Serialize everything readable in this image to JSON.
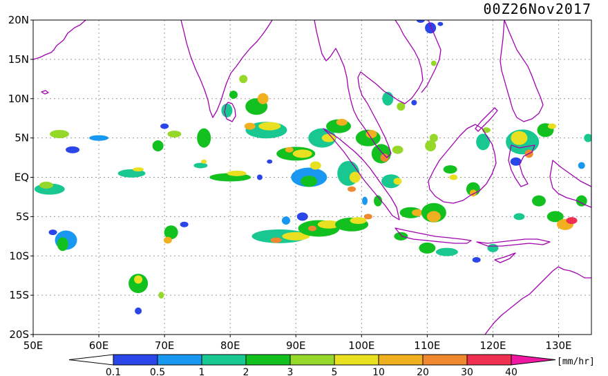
{
  "title": "00Z26Nov2017",
  "map": {
    "lon_range": [
      50,
      135
    ],
    "lat_range": [
      -20,
      20
    ],
    "lat_ticks": [
      "20N",
      "15N",
      "10N",
      "5N",
      "EQ",
      "5S",
      "10S",
      "15S",
      "20S"
    ],
    "lon_ticks": [
      "50E",
      "60E",
      "70E",
      "80E",
      "90E",
      "100E",
      "110E",
      "120E",
      "130E"
    ],
    "grid": "dotted",
    "coastline_color": "#a000b0"
  },
  "colorbar": {
    "unit": "[mm/hr]",
    "tick_labels": [
      "0.1",
      "0.5",
      "1",
      "2",
      "3",
      "5",
      "10",
      "20",
      "30",
      "40"
    ],
    "colors": [
      "#ffffff",
      "#2a46e8",
      "#1898f0",
      "#18c890",
      "#12c020",
      "#96d82a",
      "#e8e020",
      "#f0b020",
      "#f08830",
      "#f03050",
      "#f018a0"
    ]
  }
}
